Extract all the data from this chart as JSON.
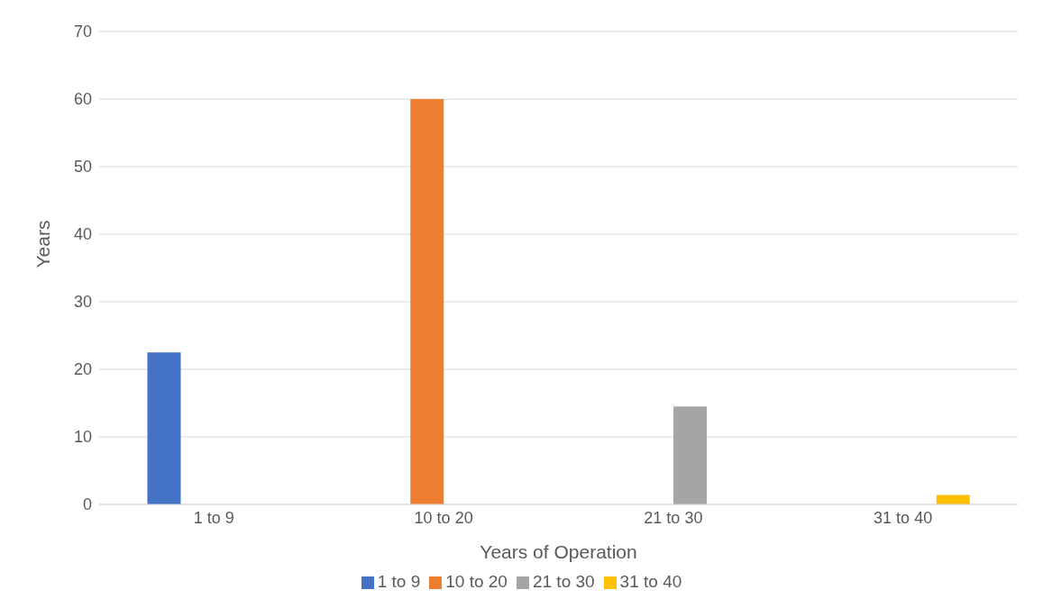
{
  "chart_data": {
    "type": "bar",
    "xlabel": "Years of Operation",
    "ylabel": "Years",
    "categories": [
      "1 to 9",
      "10 to 20",
      "21 to 30",
      "31 to 40"
    ],
    "series": [
      {
        "name": "1 to 9",
        "color": "#4472c4",
        "values": [
          22.5,
          null,
          null,
          null
        ]
      },
      {
        "name": "10 to 20",
        "color": "#ed7d31",
        "values": [
          null,
          60,
          null,
          null
        ]
      },
      {
        "name": "21 to 30",
        "color": "#a5a5a5",
        "values": [
          null,
          null,
          14.5,
          null
        ]
      },
      {
        "name": "31 to 40",
        "color": "#ffc000",
        "values": [
          null,
          null,
          null,
          1.4
        ]
      }
    ],
    "ylim": [
      0,
      70
    ],
    "yticks": [
      0,
      10,
      20,
      30,
      40,
      50,
      60,
      70
    ],
    "grid": "y",
    "legend": "bottom"
  }
}
